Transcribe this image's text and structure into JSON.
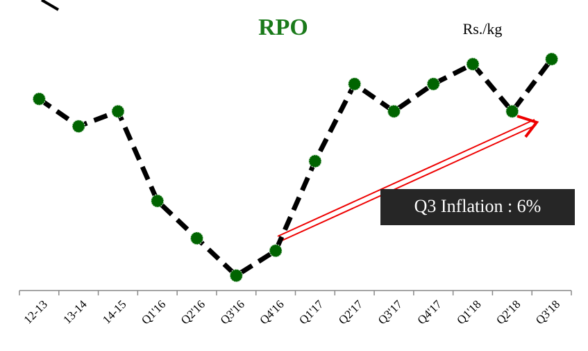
{
  "chart_data": {
    "type": "line",
    "title": "RPO",
    "unit_label": "Rs./kg",
    "annotation": "Q3 Inflation : 6%",
    "categories": [
      "12-13",
      "13-14",
      "14-15",
      "Q1'16",
      "Q2'16",
      "Q3'16",
      "Q4'16",
      "Q1'17",
      "Q2'17",
      "Q3'17",
      "Q4'17",
      "Q1'18",
      "Q2'18",
      "Q3'18"
    ],
    "series": [
      {
        "name": "RPO",
        "color": "#000000",
        "marker_color": "#006400",
        "values": [
          77,
          66,
          72,
          36,
          21,
          6,
          16,
          52,
          83,
          72,
          83,
          91,
          72,
          93
        ]
      }
    ],
    "ylim": [
      0,
      100
    ]
  }
}
